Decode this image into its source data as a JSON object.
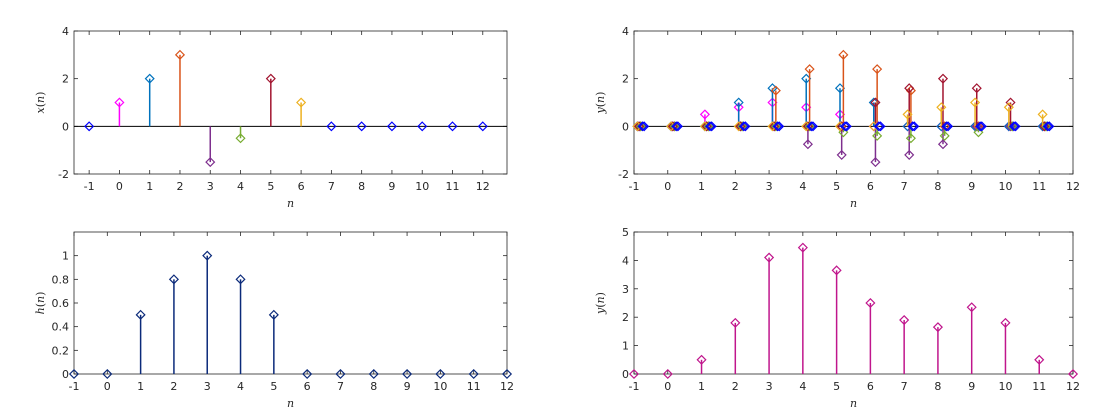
{
  "chart_data": [
    {
      "type": "stem",
      "xlabel": "n",
      "ylabel": "x(n)",
      "xlim": [
        -1.5,
        12.8
      ],
      "ylim": [
        -2,
        4
      ],
      "xticks": [
        -1,
        0,
        1,
        2,
        3,
        4,
        5,
        6,
        7,
        8,
        9,
        10,
        11,
        12
      ],
      "yticks": [
        -2,
        0,
        2,
        4
      ],
      "marker": "diamond",
      "points": [
        {
          "x": -1,
          "y": 0,
          "color": "#0000ff"
        },
        {
          "x": 0,
          "y": 1,
          "color": "#ff00ff"
        },
        {
          "x": 1,
          "y": 2,
          "color": "#0072bd"
        },
        {
          "x": 2,
          "y": 3,
          "color": "#d95319"
        },
        {
          "x": 3,
          "y": -1.5,
          "color": "#7e2f8e"
        },
        {
          "x": 4,
          "y": -0.5,
          "color": "#77ac30"
        },
        {
          "x": 5,
          "y": 2,
          "color": "#a2142f"
        },
        {
          "x": 6,
          "y": 1,
          "color": "#edb120"
        },
        {
          "x": 7,
          "y": 0,
          "color": "#0000ff"
        },
        {
          "x": 8,
          "y": 0,
          "color": "#0000ff"
        },
        {
          "x": 9,
          "y": 0,
          "color": "#0000ff"
        },
        {
          "x": 10,
          "y": 0,
          "color": "#0000ff"
        },
        {
          "x": 11,
          "y": 0,
          "color": "#0000ff"
        },
        {
          "x": 12,
          "y": 0,
          "color": "#0000ff"
        }
      ]
    },
    {
      "type": "stem",
      "xlabel": "n",
      "ylabel": "y(n)",
      "xlim": [
        -1,
        12
      ],
      "ylim": [
        -2,
        4
      ],
      "xticks": [
        -1,
        0,
        1,
        2,
        3,
        4,
        5,
        6,
        7,
        8,
        9,
        10,
        11,
        12
      ],
      "yticks": [
        -2,
        0,
        2,
        4
      ],
      "marker": "diamond",
      "series": [
        {
          "color": "#ff00ff",
          "x": [
            -0.9,
            0.1,
            1.1,
            2.1,
            3.1,
            4.1,
            5.1,
            6.1,
            7.1,
            8.1,
            9.1,
            10.1,
            11.1
          ],
          "y": [
            0,
            0,
            0.5,
            0.8,
            1.0,
            0.8,
            0.5,
            0,
            0,
            0,
            0,
            0,
            0
          ]
        },
        {
          "color": "#0072bd",
          "x": [
            -0.9,
            0.1,
            1.1,
            2.1,
            3.1,
            4.1,
            5.1,
            6.1,
            7.1,
            8.1,
            9.1,
            10.1,
            11.1
          ],
          "y": [
            0,
            0,
            0,
            1.0,
            1.6,
            2.0,
            1.6,
            1.0,
            0,
            0,
            0,
            0,
            0
          ]
        },
        {
          "color": "#d95319",
          "x": [
            -0.8,
            0.2,
            1.2,
            2.2,
            3.2,
            4.2,
            5.2,
            6.2,
            7.2,
            8.2,
            9.2,
            10.2,
            11.2
          ],
          "y": [
            0,
            0,
            0,
            0,
            1.5,
            2.4,
            3.0,
            2.4,
            1.5,
            0,
            0,
            0,
            0
          ]
        },
        {
          "color": "#7e2f8e",
          "x": [
            -0.85,
            0.15,
            1.15,
            2.15,
            3.15,
            4.15,
            5.15,
            6.15,
            7.15,
            8.15,
            9.15,
            10.15,
            11.15
          ],
          "y": [
            0,
            0,
            0,
            0,
            0,
            -0.75,
            -1.2,
            -1.5,
            -1.2,
            -0.75,
            0,
            0,
            0
          ]
        },
        {
          "color": "#77ac30",
          "x": [
            -0.8,
            0.2,
            1.2,
            2.2,
            3.2,
            4.2,
            5.2,
            6.2,
            7.2,
            8.2,
            9.2,
            10.2,
            11.2
          ],
          "y": [
            0,
            0,
            0,
            0,
            0,
            0,
            -0.25,
            -0.4,
            -0.5,
            -0.4,
            -0.25,
            0,
            0
          ]
        },
        {
          "color": "#a2142f",
          "x": [
            -0.85,
            0.15,
            1.15,
            2.15,
            3.15,
            4.15,
            5.15,
            6.15,
            7.15,
            8.15,
            9.15,
            10.15,
            11.15
          ],
          "y": [
            0,
            0,
            0,
            0,
            0,
            0,
            0,
            1.0,
            1.6,
            2.0,
            1.6,
            1.0,
            0
          ]
        },
        {
          "color": "#edb120",
          "x": [
            -0.9,
            0.1,
            1.1,
            2.1,
            3.1,
            4.1,
            5.1,
            6.1,
            7.1,
            8.1,
            9.1,
            10.1,
            11.1
          ],
          "y": [
            0,
            0,
            0,
            0,
            0,
            0,
            0,
            0,
            0.5,
            0.8,
            1.0,
            0.8,
            0.5
          ]
        },
        {
          "color": "#0000ff",
          "x": [
            -0.75,
            0.25,
            1.25,
            2.25,
            3.25,
            4.25,
            5.25,
            6.25,
            7.25,
            8.25,
            9.25,
            10.25,
            11.25
          ],
          "y": [
            0,
            0,
            0,
            0,
            0,
            0,
            0,
            0,
            0,
            0,
            0,
            0,
            0
          ]
        },
        {
          "color": "#0000ff",
          "x": [
            -0.7,
            0.3,
            1.3,
            2.3,
            3.3,
            4.3,
            5.3,
            6.3,
            7.3,
            8.3,
            9.3,
            10.3,
            11.3
          ],
          "y": [
            0,
            0,
            0,
            0,
            0,
            0,
            0,
            0,
            0,
            0,
            0,
            0,
            0
          ]
        }
      ]
    },
    {
      "type": "stem",
      "xlabel": "n",
      "ylabel": "h(n)",
      "xlim": [
        -1,
        12
      ],
      "ylim": [
        0,
        1.2
      ],
      "xticks": [
        -1,
        0,
        1,
        2,
        3,
        4,
        5,
        6,
        7,
        8,
        9,
        10,
        11,
        12
      ],
      "yticks": [
        0,
        0.2,
        0.4,
        0.6,
        0.8,
        1
      ],
      "marker": "diamond",
      "color": "#0b2a7a",
      "x": [
        -1,
        0,
        1,
        2,
        3,
        4,
        5,
        6,
        7,
        8,
        9,
        10,
        11,
        12
      ],
      "y": [
        0,
        0,
        0.5,
        0.8,
        1.0,
        0.8,
        0.5,
        0,
        0,
        0,
        0,
        0,
        0,
        0
      ]
    },
    {
      "type": "stem",
      "xlabel": "n",
      "ylabel": "y(n)",
      "xlim": [
        -1,
        12
      ],
      "ylim": [
        0,
        5
      ],
      "xticks": [
        -1,
        0,
        1,
        2,
        3,
        4,
        5,
        6,
        7,
        8,
        9,
        10,
        11,
        12
      ],
      "yticks": [
        0,
        1,
        2,
        3,
        4,
        5
      ],
      "marker": "diamond",
      "color": "#c0158c",
      "x": [
        -1,
        0,
        1,
        2,
        3,
        4,
        5,
        6,
        7,
        8,
        9,
        10,
        11,
        12
      ],
      "y": [
        0,
        0,
        0.5,
        1.8,
        4.1,
        4.45,
        3.65,
        2.5,
        1.9,
        1.65,
        2.35,
        1.8,
        0.5,
        0
      ]
    }
  ]
}
